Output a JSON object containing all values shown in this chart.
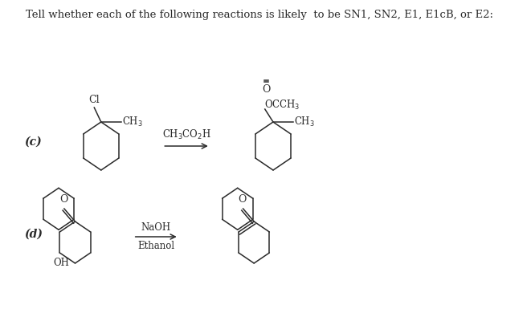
{
  "title": "Tell whether each of the following reactions is likely  to be SN1, SN2, E1, E1cB, or E2:",
  "bg_color": "#ffffff",
  "text_color": "#2a2a2a",
  "label_c": "(c)",
  "label_d": "(d)",
  "title_fontsize": 9.5,
  "label_fontsize": 10,
  "chem_fontsize": 8.5
}
